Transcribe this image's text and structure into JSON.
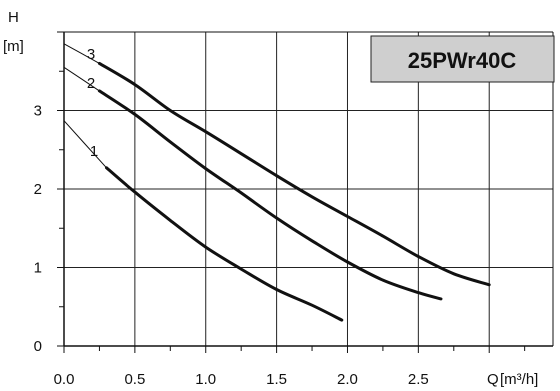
{
  "chart_data": {
    "type": "line",
    "title": "25PWr40C",
    "ylabel": "H",
    "yunit": "[m]",
    "xlabel": "Q",
    "xunit": "[m³/h]",
    "xlim": [
      0,
      3.45
    ],
    "ylim": [
      0,
      4
    ],
    "x_ticks": [
      "0.0",
      "0.5",
      "1.0",
      "1.5",
      "2.0",
      "2.5"
    ],
    "y_ticks": [
      "0",
      "1",
      "2",
      "3"
    ],
    "grid": true,
    "series": [
      {
        "name": "1",
        "points": [
          [
            0.0,
            2.87
          ],
          [
            0.3,
            2.27
          ],
          [
            0.5,
            1.96
          ],
          [
            0.75,
            1.6
          ],
          [
            1.0,
            1.26
          ],
          [
            1.25,
            0.98
          ],
          [
            1.5,
            0.72
          ],
          [
            1.75,
            0.52
          ],
          [
            1.96,
            0.33
          ]
        ]
      },
      {
        "name": "2",
        "points": [
          [
            0.0,
            3.55
          ],
          [
            0.25,
            3.25
          ],
          [
            0.5,
            2.95
          ],
          [
            0.75,
            2.6
          ],
          [
            1.0,
            2.26
          ],
          [
            1.25,
            1.95
          ],
          [
            1.5,
            1.63
          ],
          [
            1.75,
            1.34
          ],
          [
            2.0,
            1.07
          ],
          [
            2.25,
            0.84
          ],
          [
            2.5,
            0.68
          ],
          [
            2.66,
            0.6
          ]
        ]
      },
      {
        "name": "3",
        "points": [
          [
            0.0,
            3.85
          ],
          [
            0.25,
            3.6
          ],
          [
            0.5,
            3.33
          ],
          [
            0.75,
            3.0
          ],
          [
            1.0,
            2.73
          ],
          [
            1.25,
            2.45
          ],
          [
            1.5,
            2.17
          ],
          [
            1.75,
            1.9
          ],
          [
            2.0,
            1.65
          ],
          [
            2.25,
            1.4
          ],
          [
            2.5,
            1.14
          ],
          [
            2.75,
            0.92
          ],
          [
            3.0,
            0.78
          ]
        ]
      }
    ]
  }
}
